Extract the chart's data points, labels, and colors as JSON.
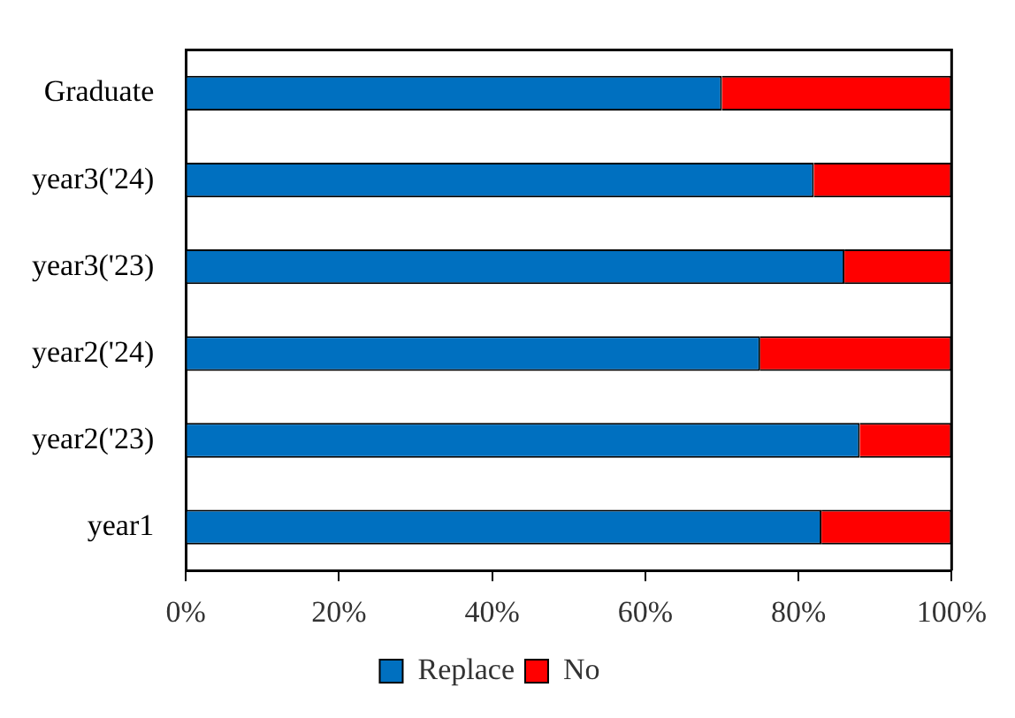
{
  "chart_data": {
    "type": "bar",
    "orientation": "horizontal",
    "stacked": true,
    "categories": [
      "Graduate",
      "year3('24)",
      "year3('23)",
      "year2('24)",
      "year2('23)",
      "year1"
    ],
    "series": [
      {
        "name": "Replace",
        "color": "#0070c0",
        "values": [
          70,
          82,
          86,
          75,
          88,
          83
        ]
      },
      {
        "name": "No",
        "color": "#ff0000",
        "values": [
          30,
          18,
          14,
          25,
          12,
          17
        ]
      }
    ],
    "xlim": [
      0,
      100
    ],
    "xticks": [
      {
        "value": 0,
        "label": "0%"
      },
      {
        "value": 20,
        "label": "20%"
      },
      {
        "value": 40,
        "label": "40%"
      },
      {
        "value": 60,
        "label": "60%"
      },
      {
        "value": 80,
        "label": "80%"
      },
      {
        "value": 100,
        "label": "100%"
      }
    ],
    "grid": false,
    "legend": "bottom"
  }
}
